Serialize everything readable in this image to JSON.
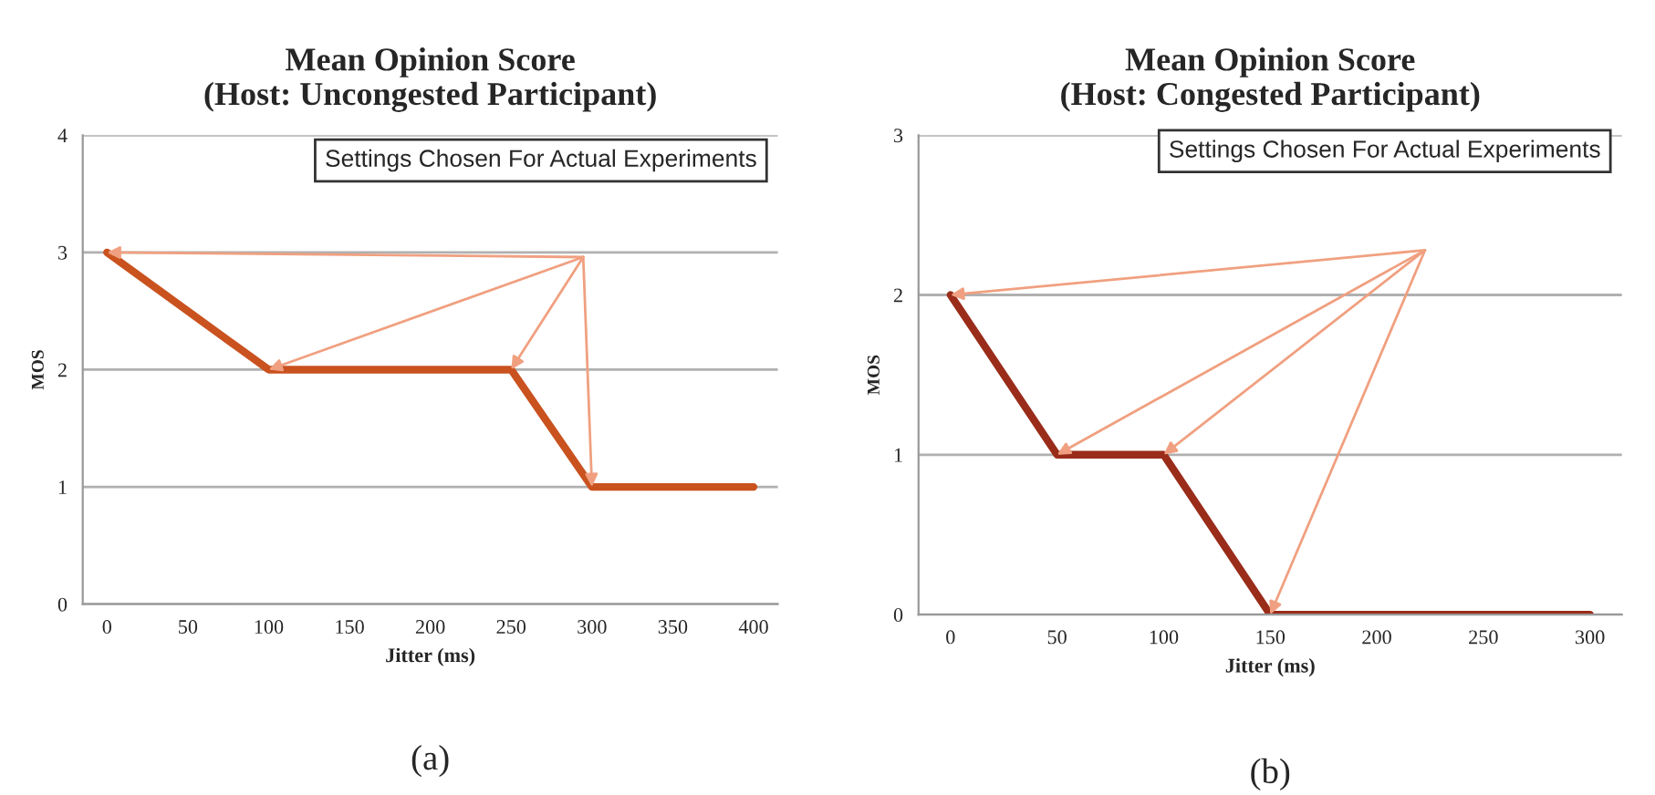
{
  "chart_data": [
    {
      "type": "line",
      "title": "Mean Opinion Score\n(Host: Uncongested Participant)",
      "xlabel": "Jitter (ms)",
      "ylabel": "MOS",
      "x": [
        0,
        100,
        250,
        300,
        400
      ],
      "series": [
        {
          "color": "#c9521f",
          "values": [
            3,
            2,
            2,
            1,
            1
          ]
        }
      ],
      "xlim": [
        -15,
        415
      ],
      "xticks": [
        0,
        50,
        100,
        150,
        200,
        250,
        300,
        350,
        400
      ],
      "ylim": [
        0,
        4
      ],
      "yticks": [
        0,
        1,
        2,
        3,
        4
      ],
      "grid": "y",
      "annotations": [
        "Settings Chosen For Actual Experiments",
        "(a)"
      ]
    },
    {
      "type": "line",
      "title": "Mean Opinion Score\n(Host: Congested Participant)",
      "xlabel": "Jitter (ms)",
      "ylabel": "MOS",
      "x": [
        0,
        50,
        100,
        150,
        300
      ],
      "series": [
        {
          "color": "#9a2c1a",
          "values": [
            2,
            1,
            1,
            0,
            0
          ]
        }
      ],
      "xlim": [
        -15,
        315
      ],
      "xticks": [
        0,
        50,
        100,
        150,
        200,
        250,
        300
      ],
      "ylim": [
        0,
        3
      ],
      "yticks": [
        0,
        1,
        2,
        3
      ],
      "grid": "y",
      "annotations": [
        "Settings Chosen For Actual Experiments",
        "(b)"
      ]
    }
  ]
}
